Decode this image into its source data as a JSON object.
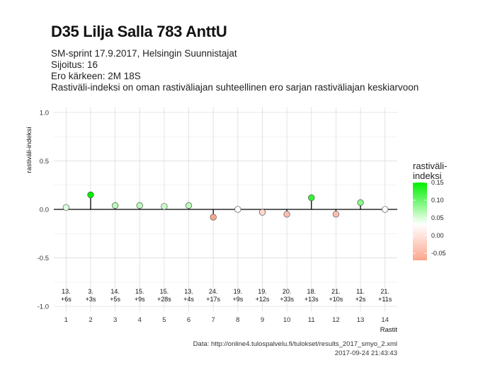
{
  "header": {
    "title": "D35 Lilja Salla 783 AnttU",
    "subtitle_lines": [
      "SM-sprint 17.9.2017, Helsingin Suunnistajat",
      "Sijoitus: 16",
      "Ero kärkeen: 2M 18S",
      "Rastiväli-indeksi on oman rastiväliajan suhteellinen ero sarjan rastiväliajan keskiarvoon"
    ]
  },
  "caption": {
    "source": "Data: http://online4.tulospalvelu.fi/tulokset/results_2017_smyo_2.xml",
    "timestamp": "2017-09-24 21:43:43"
  },
  "legend": {
    "title_lines": [
      "rastiväli-",
      "indeksi"
    ],
    "ticks": [
      "0.15",
      "0.10",
      "0.05",
      "0.00",
      "-0.05"
    ],
    "colors": {
      "low": "#fca68c",
      "mid": "#ffffff",
      "high": "#00f000"
    }
  },
  "chart_data": {
    "type": "scatter",
    "title": "D35 Lilja Salla 783 AnttU",
    "xlabel": "Rastit",
    "ylabel": "rastiväli-indeksi",
    "ylim": [
      -1.05,
      1.05
    ],
    "yticks": [
      "-1.0",
      "-0.5",
      "0.0",
      "0.5",
      "1.0"
    ],
    "x": [
      "1",
      "2",
      "3",
      "4",
      "5",
      "6",
      "7",
      "8",
      "9",
      "10",
      "11",
      "12",
      "13",
      "14"
    ],
    "values": [
      0.02,
      0.15,
      0.04,
      0.04,
      0.03,
      0.04,
      -0.08,
      0.0,
      -0.03,
      -0.05,
      0.12,
      -0.05,
      0.07,
      0.0
    ],
    "rank_labels": [
      "13.",
      "3.",
      "14.",
      "15.",
      "15.",
      "13.",
      "24.",
      "19.",
      "19.",
      "20.",
      "18.",
      "21.",
      "11.",
      "21."
    ],
    "diff_labels": [
      "+6s",
      "+3s",
      "+5s",
      "+9s",
      "+28s",
      "+4s",
      "+17s",
      "+9s",
      "+12s",
      "+33s",
      "+13s",
      "+10s",
      "+2s",
      "+11s"
    ],
    "grid": true,
    "legend_position": "right"
  }
}
